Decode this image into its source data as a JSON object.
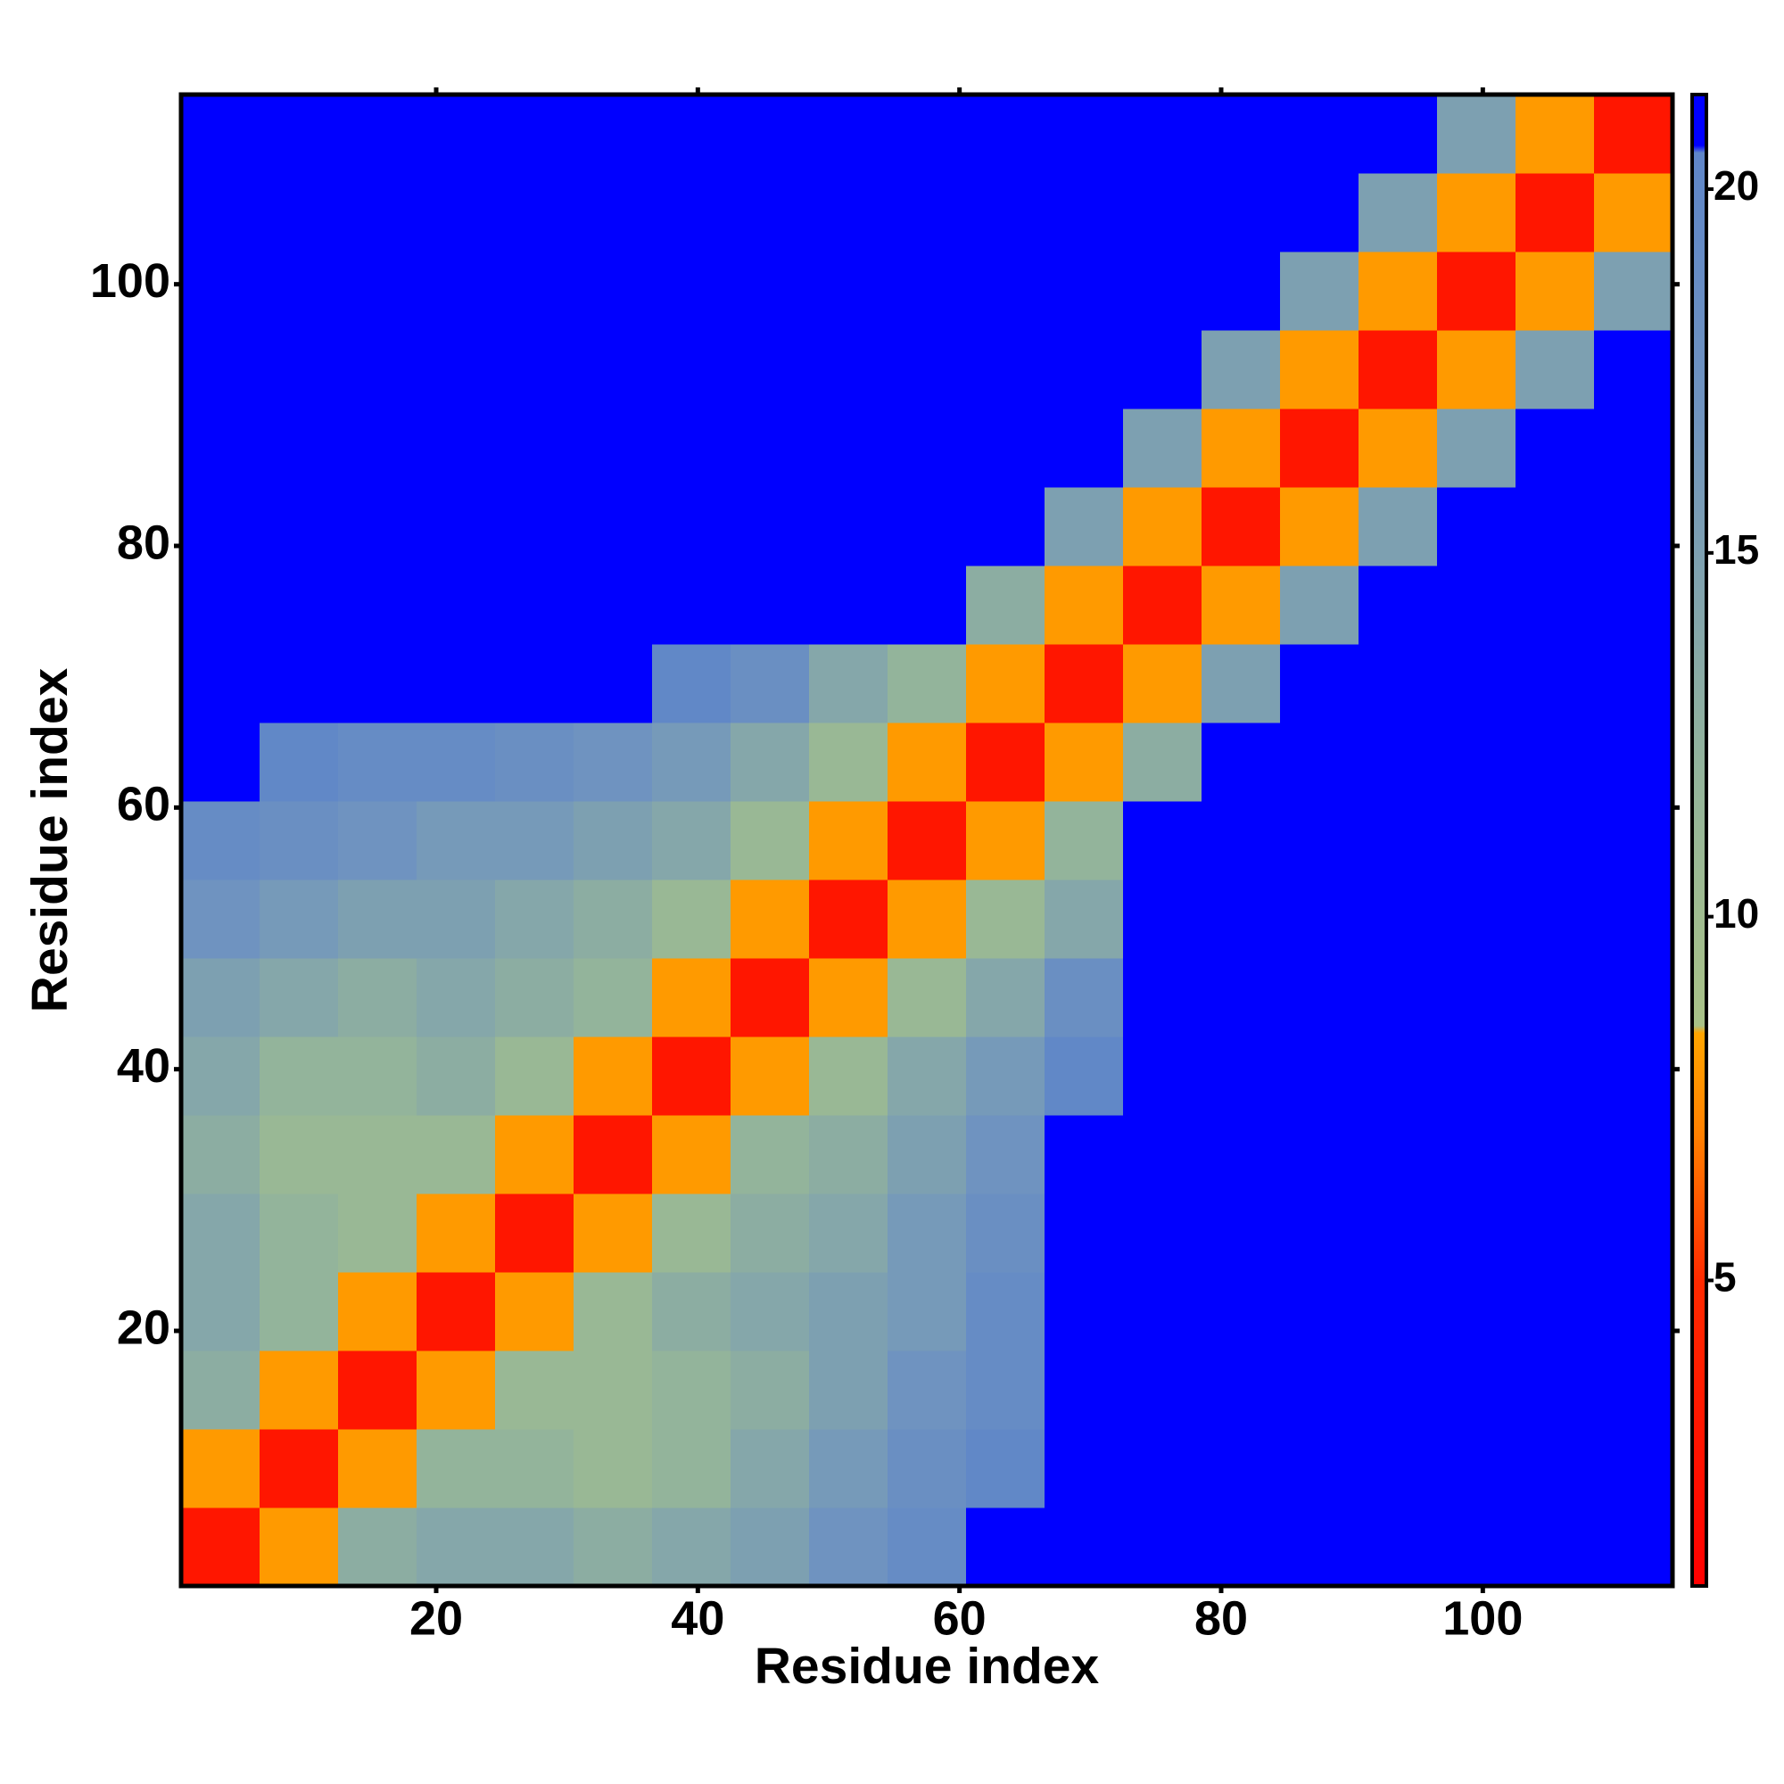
{
  "chart_data": {
    "type": "heatmap",
    "xlabel": "Residue index",
    "ylabel": "Residue index",
    "x": [
      3.5,
      9.5,
      15.5,
      21.5,
      27.5,
      33.5,
      39.5,
      45.5,
      51.5,
      57.5,
      63.5,
      69.5,
      75.5,
      81.5,
      87.5,
      93.5,
      99.5,
      105.5,
      111.5
    ],
    "y": [
      3.5,
      9.5,
      15.5,
      21.5,
      27.5,
      33.5,
      39.5,
      45.5,
      51.5,
      57.5,
      63.5,
      69.5,
      75.5,
      81.5,
      87.5,
      93.5,
      99.5,
      105.5,
      111.5
    ],
    "z": [
      [
        3,
        8,
        13,
        14,
        14,
        13,
        14,
        15,
        17,
        19,
        21,
        22,
        24,
        24,
        24,
        24,
        24,
        24,
        24
      ],
      [
        8,
        3,
        8,
        12,
        12,
        11,
        12,
        14,
        16,
        18,
        20,
        22,
        24,
        24,
        24,
        24,
        24,
        24,
        24
      ],
      [
        13,
        8,
        3,
        8,
        11,
        11,
        12,
        13,
        15,
        17,
        19,
        21,
        24,
        24,
        24,
        24,
        24,
        24,
        24
      ],
      [
        14,
        12,
        8,
        3,
        8,
        11,
        13,
        14,
        15,
        16,
        19,
        21,
        24,
        24,
        24,
        24,
        24,
        24,
        24
      ],
      [
        14,
        12,
        11,
        8,
        3,
        8,
        11,
        13,
        14,
        16,
        18,
        21,
        24,
        24,
        24,
        24,
        24,
        24,
        24
      ],
      [
        13,
        11,
        11,
        11,
        8,
        3,
        8,
        12,
        13,
        15,
        17,
        21,
        24,
        24,
        24,
        24,
        24,
        24,
        24
      ],
      [
        14,
        12,
        12,
        13,
        11,
        8,
        3,
        8,
        11,
        14,
        16,
        20,
        24,
        24,
        24,
        24,
        24,
        24,
        24
      ],
      [
        15,
        14,
        13,
        14,
        13,
        12,
        8,
        3,
        8,
        11,
        14,
        18,
        24,
        24,
        24,
        24,
        24,
        24,
        24
      ],
      [
        17,
        16,
        15,
        15,
        14,
        13,
        11,
        8,
        3,
        8,
        11,
        14,
        24,
        24,
        24,
        24,
        24,
        24,
        24
      ],
      [
        19,
        18,
        17,
        16,
        16,
        15,
        14,
        11,
        8,
        3,
        8,
        12,
        22,
        24,
        24,
        24,
        24,
        24,
        24
      ],
      [
        21,
        20,
        19,
        19,
        18,
        17,
        16,
        14,
        11,
        8,
        3,
        8,
        13,
        22,
        24,
        24,
        24,
        24,
        24
      ],
      [
        22,
        22,
        21,
        21,
        21,
        21,
        20,
        18,
        14,
        12,
        8,
        3,
        8,
        15,
        22,
        24,
        24,
        24,
        24
      ],
      [
        24,
        24,
        24,
        24,
        24,
        24,
        24,
        24,
        24,
        22,
        13,
        8,
        3,
        8,
        15,
        22,
        25,
        25,
        25
      ],
      [
        24,
        24,
        24,
        24,
        24,
        24,
        24,
        24,
        24,
        24,
        22,
        15,
        8,
        3,
        8,
        15,
        22,
        25,
        25
      ],
      [
        24,
        24,
        24,
        24,
        24,
        24,
        24,
        24,
        24,
        24,
        24,
        22,
        15,
        8,
        3,
        8,
        15,
        22,
        25
      ],
      [
        24,
        24,
        24,
        24,
        24,
        24,
        24,
        24,
        24,
        24,
        24,
        24,
        22,
        15,
        8,
        3,
        8,
        15,
        22
      ],
      [
        24,
        24,
        24,
        24,
        24,
        24,
        24,
        24,
        24,
        24,
        24,
        24,
        25,
        22,
        15,
        8,
        3,
        8,
        15
      ],
      [
        24,
        24,
        24,
        24,
        24,
        24,
        24,
        24,
        24,
        24,
        24,
        24,
        25,
        25,
        22,
        15,
        8,
        3,
        8
      ],
      [
        24,
        24,
        24,
        24,
        24,
        24,
        24,
        24,
        24,
        24,
        24,
        24,
        25,
        25,
        25,
        22,
        15,
        8,
        3
      ]
    ],
    "xlim": [
      0.5,
      114.5
    ],
    "ylim": [
      0.5,
      114.5
    ],
    "xticks": [
      20,
      40,
      60,
      80,
      100
    ],
    "yticks": [
      20,
      40,
      60,
      80,
      100
    ],
    "colorscale": [
      [
        0.8,
        "#ff0000"
      ],
      [
        5,
        "#ff2a00"
      ],
      [
        7,
        "#ff8000"
      ],
      [
        8.4,
        "#ffa500"
      ],
      [
        8.5,
        "#a9c287"
      ],
      [
        12,
        "#93b49b"
      ],
      [
        17,
        "#6f93c0"
      ],
      [
        20.5,
        "#5f86c8"
      ],
      [
        20.6,
        "#0000ff"
      ]
    ],
    "colorbar": {
      "lim": [
        0.8,
        21.3
      ],
      "ticks": [
        5,
        10,
        15,
        20
      ]
    }
  }
}
